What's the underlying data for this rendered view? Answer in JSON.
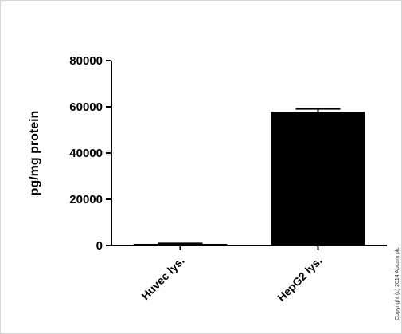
{
  "chart_data": {
    "type": "bar",
    "categories": [
      "Huvec lys.",
      "HepG2 lys."
    ],
    "values": [
      700,
      57800
    ],
    "errors": [
      200,
      1300
    ],
    "ylabel": "pg/mg protein",
    "xlabel": "",
    "title": "",
    "ylim": [
      0,
      80000
    ],
    "yticks": [
      0,
      20000,
      40000,
      60000,
      80000
    ],
    "bar_color": "#000000",
    "grid": false,
    "legend": "none"
  },
  "copyright": "Copyright (c) 2014 Abcam plc"
}
